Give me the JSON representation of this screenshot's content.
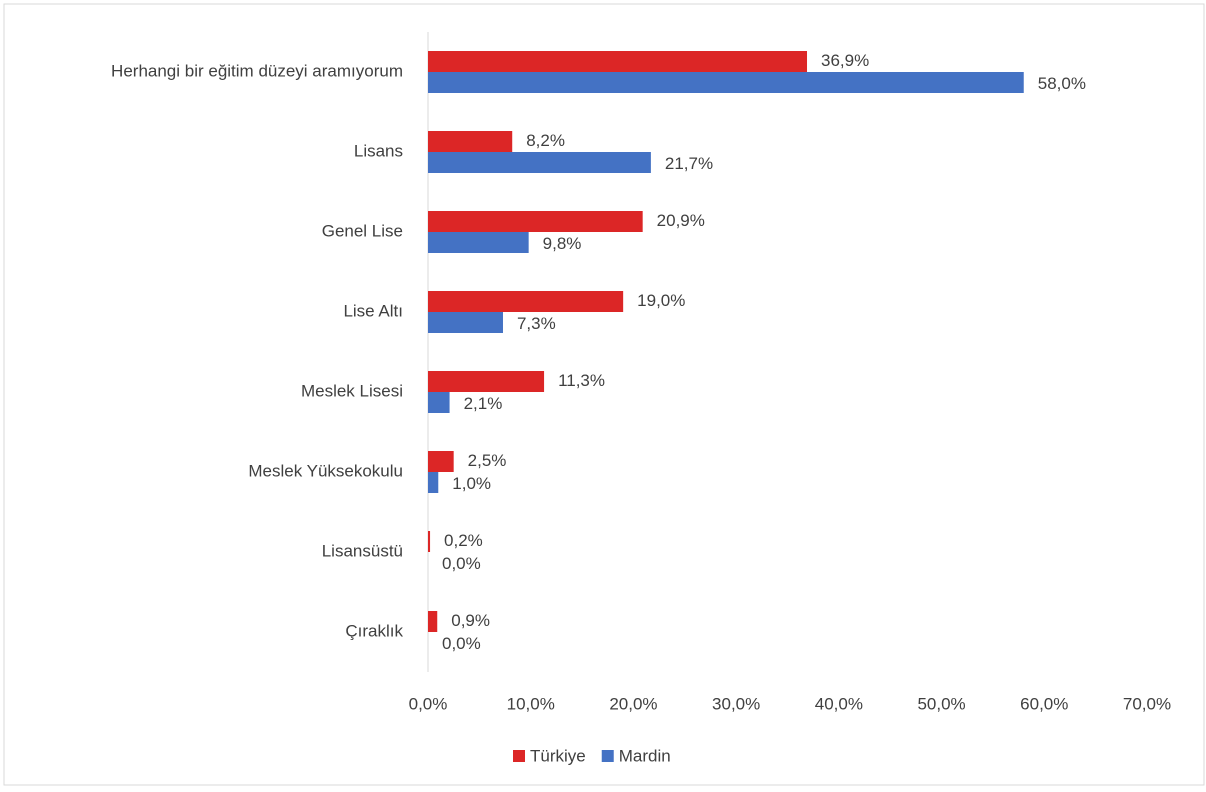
{
  "chart_data": {
    "type": "hbar",
    "categories": [
      "Herhangi bir eğitim düzeyi aramıyorum",
      "Lisans",
      "Genel Lise",
      "Lise Altı",
      "Meslek Lisesi",
      "Meslek Yüksekokulu",
      "Lisansüstü",
      "Çıraklık"
    ],
    "series": [
      {
        "name": "Türkiye",
        "color": "#dc2626",
        "values": [
          36.9,
          8.2,
          20.9,
          19.0,
          11.3,
          2.5,
          0.2,
          0.9
        ],
        "value_labels": [
          "36,9%",
          "8,2%",
          "20,9%",
          "19,0%",
          "11,3%",
          "2,5%",
          "0,2%",
          "0,9%"
        ]
      },
      {
        "name": "Mardin",
        "color": "#4472c4",
        "values": [
          58.0,
          21.7,
          9.8,
          7.3,
          2.1,
          1.0,
          0.0,
          0.0
        ],
        "value_labels": [
          "58,0%",
          "21,7%",
          "9,8%",
          "7,3%",
          "2,1%",
          "1,0%",
          "0,0%",
          "0,0%"
        ]
      }
    ],
    "xlim": [
      0,
      70
    ],
    "xticks": [
      {
        "value": 0,
        "label": "0,0%"
      },
      {
        "value": 10,
        "label": "10,0%"
      },
      {
        "value": 20,
        "label": "20,0%"
      },
      {
        "value": 30,
        "label": "30,0%"
      },
      {
        "value": 40,
        "label": "40,0%"
      },
      {
        "value": 50,
        "label": "50,0%"
      },
      {
        "value": 60,
        "label": "60,0%"
      },
      {
        "value": 70,
        "label": "70,0%"
      }
    ],
    "legend": "bottom"
  }
}
